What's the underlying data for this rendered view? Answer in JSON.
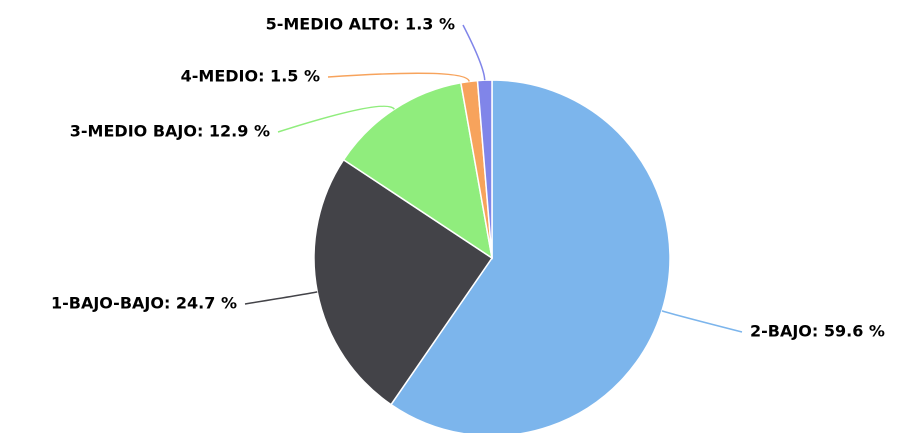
{
  "chart_data": {
    "type": "pie",
    "value_labels": [
      "2-BAJO: 59.6 %",
      "1-BAJO-BAJO: 24.7 %",
      "3-MEDIO BAJO: 12.9 %",
      "4-MEDIO: 1.5 %",
      "5-MEDIO ALTO: 1.3 %"
    ],
    "values": [
      59.6,
      24.7,
      12.9,
      1.5,
      1.3
    ],
    "colors": [
      "#7cb5ec",
      "#434348",
      "#90ed7d",
      "#f7a35c",
      "#8085e9"
    ]
  }
}
